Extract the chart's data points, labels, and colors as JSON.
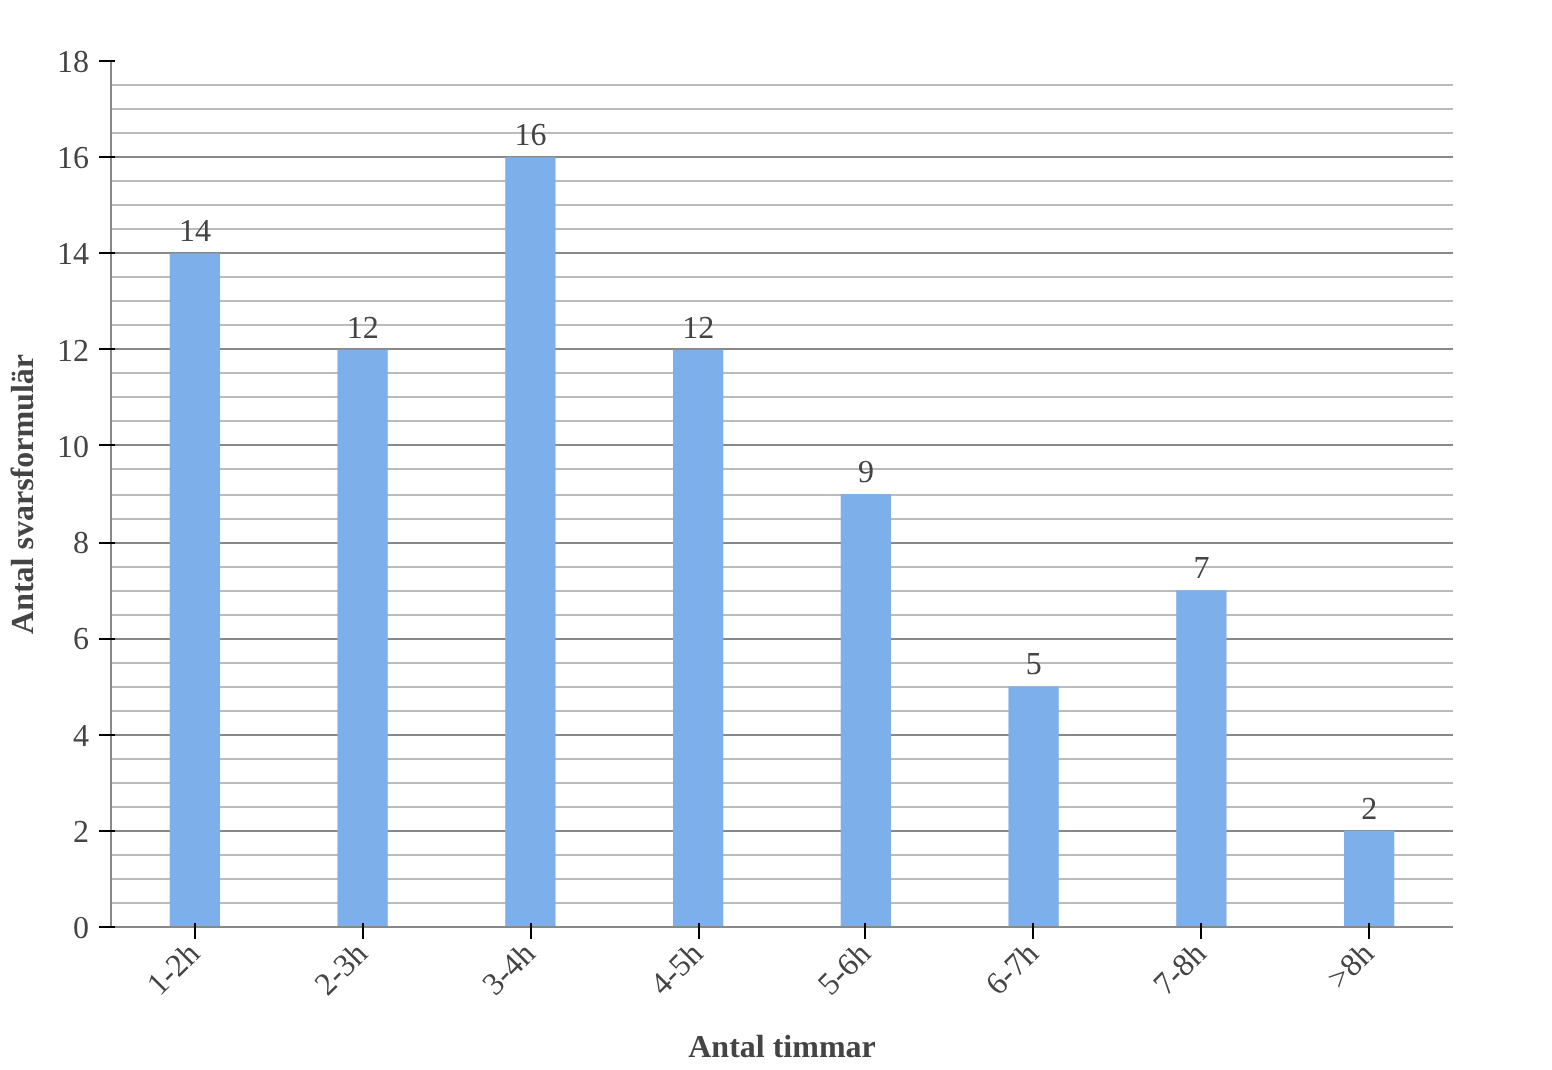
{
  "chart_data": {
    "type": "bar",
    "xlabel": "Antal timmar",
    "ylabel": "Antal svarsformulär",
    "categories": [
      "1-2h",
      "2-3h",
      "3-4h",
      "4-5h",
      "5-6h",
      "6-7h",
      "7-8h",
      ">8h"
    ],
    "values": [
      14,
      12,
      16,
      12,
      9,
      5,
      7,
      2
    ],
    "color": "#7db0ea",
    "ylim": [
      0,
      18
    ],
    "yticks": [
      0,
      2,
      4,
      6,
      8,
      10,
      12,
      14,
      16,
      18
    ],
    "grid": "y",
    "data_labels": true
  }
}
